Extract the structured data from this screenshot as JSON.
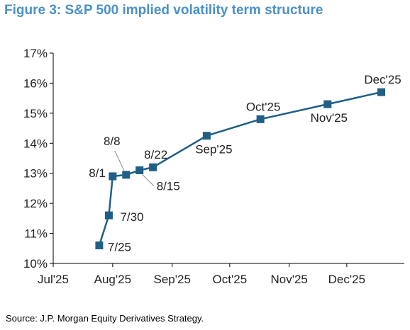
{
  "title": "Figure 3: S&P 500 implied volatility term structure",
  "source": "Source: J.P. Morgan Equity Derivatives Strategy.",
  "colors": {
    "title": "#4a90c8",
    "series": "#1f5f86",
    "axis": "#000000"
  },
  "chart_data": {
    "type": "line",
    "title": "Figure 3: S&P 500 implied volatility term structure",
    "xlabel": "",
    "ylabel": "",
    "x_ticks": [
      "Jul'25",
      "Aug'25",
      "Sep'25",
      "Oct'25",
      "Nov'25",
      "Dec'25"
    ],
    "x_tick_dates": [
      "2025-07-01",
      "2025-08-01",
      "2025-09-01",
      "2025-10-01",
      "2025-11-01",
      "2025-12-01"
    ],
    "x_range": [
      "2025-07-01",
      "2025-12-31"
    ],
    "y_ticks": [
      "10%",
      "11%",
      "12%",
      "13%",
      "14%",
      "15%",
      "16%",
      "17%"
    ],
    "ylim": [
      10,
      17
    ],
    "grid": false,
    "series": [
      {
        "points": [
          {
            "date": "2025-07-25",
            "value": 10.6,
            "label": "7/25"
          },
          {
            "date": "2025-07-30",
            "value": 11.6,
            "label": "7/30"
          },
          {
            "date": "2025-08-01",
            "value": 12.9,
            "label": "8/1"
          },
          {
            "date": "2025-08-08",
            "value": 12.95,
            "label": "8/8"
          },
          {
            "date": "2025-08-15",
            "value": 13.1,
            "label": "8/15"
          },
          {
            "date": "2025-08-22",
            "value": 13.2,
            "label": "8/22"
          },
          {
            "date": "2025-09-19",
            "value": 14.25,
            "label": "Sep'25"
          },
          {
            "date": "2025-10-17",
            "value": 14.8,
            "label": "Oct'25"
          },
          {
            "date": "2025-11-21",
            "value": 15.3,
            "label": "Nov'25"
          },
          {
            "date": "2025-12-19",
            "value": 15.7,
            "label": "Dec'25"
          }
        ]
      }
    ]
  }
}
